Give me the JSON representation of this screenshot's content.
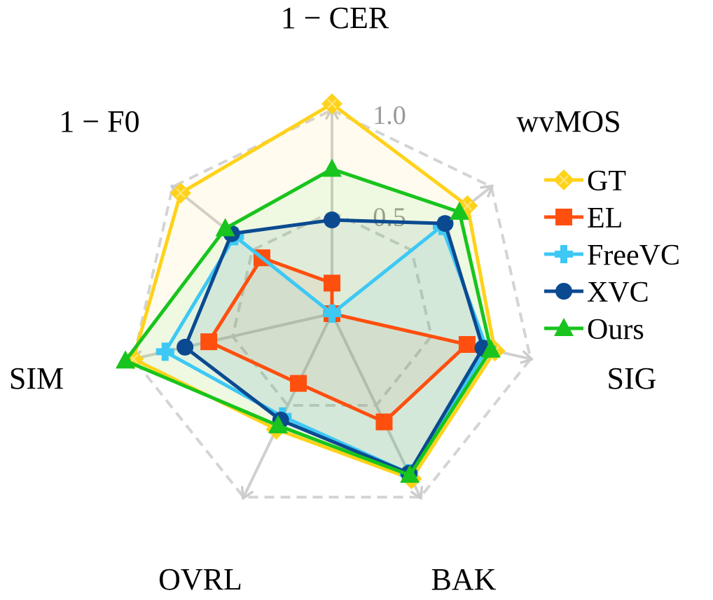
{
  "chart_data": {
    "type": "radar",
    "title": "",
    "axes": [
      "1 − CER",
      "wvMOS",
      "SIG",
      "BAK",
      "OVRL",
      "SIM",
      "1 − F0"
    ],
    "ring_values": [
      0.5,
      1.0
    ],
    "ring_labels": [
      "0.5",
      "1.0"
    ],
    "range": [
      0,
      1.1
    ],
    "grid": true,
    "legend_position": "right",
    "series": [
      {
        "name": "GT",
        "color": "#FFD21A",
        "marker": "diamond-cross",
        "values": [
          1.03,
          0.85,
          0.82,
          0.9,
          0.63,
          1.0,
          0.95
        ]
      },
      {
        "name": "EL",
        "color": "#FF4F0F",
        "marker": "square",
        "values": [
          0.15,
          0.0,
          0.68,
          0.59,
          0.38,
          0.62,
          0.44
        ]
      },
      {
        "name": "FreeVC",
        "color": "#3DC8F5",
        "marker": "plus",
        "values": [
          0.0,
          0.69,
          0.78,
          0.87,
          0.56,
          0.84,
          0.61
        ]
      },
      {
        "name": "XVC",
        "color": "#0B4A91",
        "marker": "circle",
        "values": [
          0.46,
          0.71,
          0.76,
          0.87,
          0.58,
          0.74,
          0.63
        ]
      },
      {
        "name": "Ours",
        "color": "#18C41D",
        "marker": "triangle",
        "values": [
          0.71,
          0.8,
          0.8,
          0.88,
          0.61,
          1.04,
          0.67
        ]
      }
    ]
  }
}
